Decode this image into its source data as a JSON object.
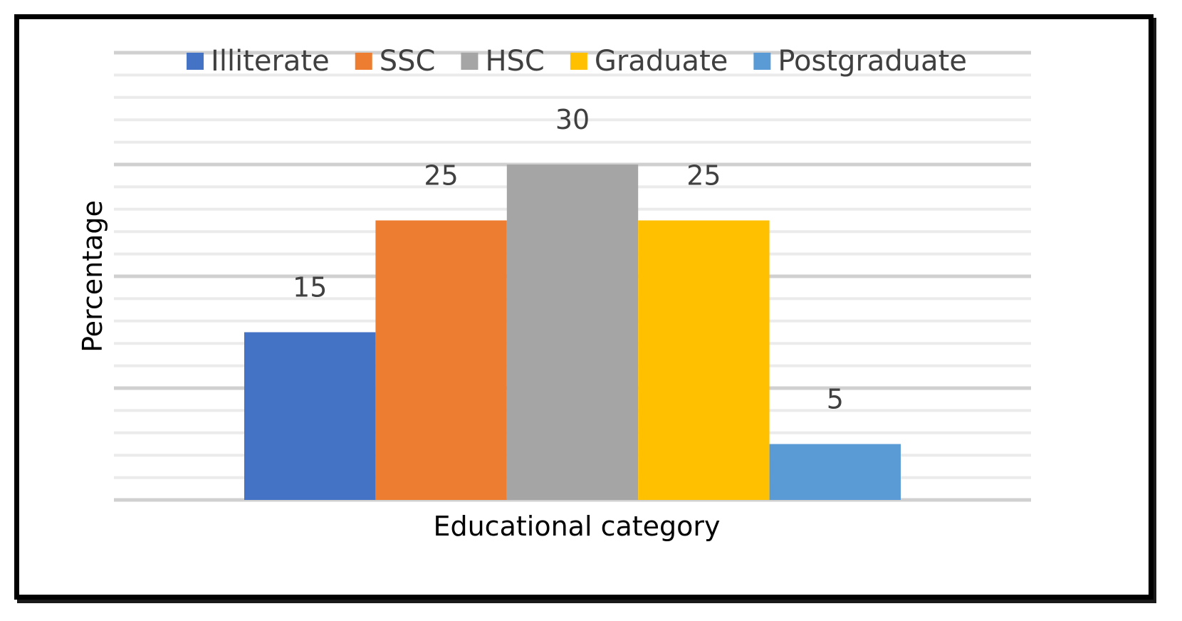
{
  "chart_data": {
    "type": "bar",
    "title": "",
    "xlabel": "Educational category",
    "ylabel": "Percentage",
    "ylim": [
      0,
      40
    ],
    "grid": true,
    "legend_position": "top",
    "series": [
      {
        "name": "Illiterate",
        "value": 15,
        "color": "#4472C4"
      },
      {
        "name": "SSC",
        "value": 25,
        "color": "#ED7D31"
      },
      {
        "name": "HSC",
        "value": 30,
        "color": "#A5A5A5"
      },
      {
        "name": "Graduate",
        "value": 25,
        "color": "#FFC000"
      },
      {
        "name": "Postgraduate",
        "value": 5,
        "color": "#5B9BD5"
      }
    ]
  }
}
